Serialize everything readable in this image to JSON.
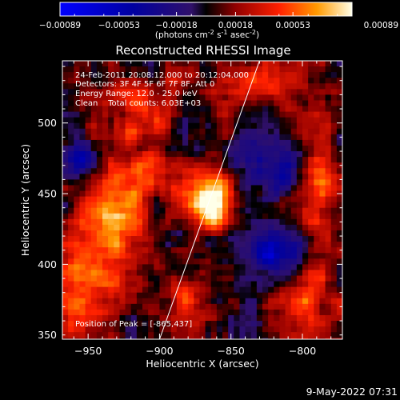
{
  "chart_data": {
    "type": "heatmap",
    "title": "Reconstructed RHESSI Image",
    "xlabel": "Heliocentric X (arcsec)",
    "ylabel": "Heliocentric Y (arcsec)",
    "xlim": [
      -968,
      -772
    ],
    "ylim": [
      347,
      544
    ],
    "x_ticks": [
      -950,
      -900,
      -850,
      -800
    ],
    "y_ticks": [
      400,
      450,
      500
    ],
    "colorbar": {
      "ticks": [
        "-0.00089",
        "-0.00053",
        "-0.00018",
        "0.00018",
        "0.00053",
        "0.00089"
      ],
      "tick_values": [
        -0.00089,
        -0.00053,
        -0.00018,
        0.00018,
        0.00053,
        0.00089
      ],
      "range": [
        -0.00089,
        0.00089
      ],
      "units_prefix": "(photons cm",
      "units_exp1": "-2",
      "units_mid": " s",
      "units_exp2": "-1",
      "units_mid2": " asec",
      "units_exp3": "-2",
      "units_suffix": ")"
    },
    "annotations": [
      "24-Feb-2011 20:08:12.000 to 20:12:04.000",
      "Detectors: 3F 4F 5F 6F 7F 8F, Att 0",
      "Energy Range: 12.0 - 25.0 keV",
      "Clean    Total counts: 6.03E+03"
    ],
    "peak_label": "Position of Peak = [-865,437]",
    "peak": {
      "x": -865,
      "y": 437
    },
    "limb_line": [
      [
        -900,
        347
      ],
      [
        -830,
        544
      ]
    ],
    "sources": [
      {
        "x": -865,
        "y": 442,
        "sx": 9,
        "sy": 11,
        "amp": 0.00105
      },
      {
        "x": -870,
        "y": 455,
        "sx": 14,
        "sy": 10,
        "amp": 0.00045
      },
      {
        "x": -930,
        "y": 440,
        "sx": 16,
        "sy": 14,
        "amp": 0.00055
      },
      {
        "x": -945,
        "y": 405,
        "sx": 22,
        "sy": 24,
        "amp": 0.0006
      },
      {
        "x": -915,
        "y": 465,
        "sx": 16,
        "sy": 12,
        "amp": 0.00045
      },
      {
        "x": -905,
        "y": 510,
        "sx": 28,
        "sy": 18,
        "amp": 0.00045
      },
      {
        "x": -825,
        "y": 530,
        "sx": 20,
        "sy": 12,
        "amp": 0.0004
      },
      {
        "x": -790,
        "y": 460,
        "sx": 10,
        "sy": 35,
        "amp": 0.0005
      },
      {
        "x": -800,
        "y": 375,
        "sx": 14,
        "sy": 20,
        "amp": 0.00045
      },
      {
        "x": -880,
        "y": 375,
        "sx": 14,
        "sy": 14,
        "amp": 0.00035
      },
      {
        "x": -955,
        "y": 365,
        "sx": 14,
        "sy": 12,
        "amp": 0.00035
      },
      {
        "x": -820,
        "y": 470,
        "sx": 14,
        "sy": 14,
        "amp": -0.0004
      },
      {
        "x": -818,
        "y": 408,
        "sx": 14,
        "sy": 12,
        "amp": -0.0006
      },
      {
        "x": -955,
        "y": 475,
        "sx": 10,
        "sy": 12,
        "amp": -0.00035
      },
      {
        "x": -880,
        "y": 500,
        "sx": 12,
        "sy": 12,
        "amp": -0.0003
      }
    ],
    "noise_amp": 0.00032,
    "pixel_size": 4
  },
  "footer": {
    "timestamp": "9-May-2022 07:31"
  }
}
